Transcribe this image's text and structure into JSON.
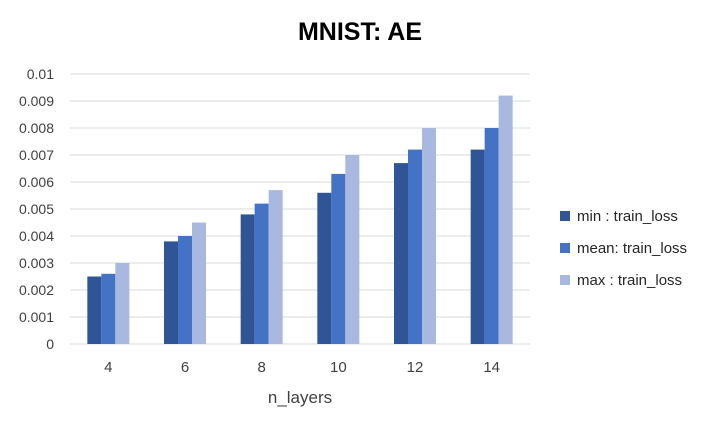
{
  "chart_data": {
    "type": "bar",
    "title": "MNIST: AE",
    "xlabel": "n_layers",
    "ylabel": "",
    "categories": [
      "4",
      "6",
      "8",
      "10",
      "12",
      "14"
    ],
    "series": [
      {
        "name": "min : train_loss",
        "color": "#2F5597",
        "values": [
          0.0025,
          0.0038,
          0.0048,
          0.0056,
          0.0067,
          0.0072
        ]
      },
      {
        "name": "mean: train_loss",
        "color": "#4472C4",
        "values": [
          0.0026,
          0.004,
          0.0052,
          0.0063,
          0.0072,
          0.008
        ]
      },
      {
        "name": "max : train_loss",
        "color": "#A9B8DE",
        "values": [
          0.003,
          0.0045,
          0.0057,
          0.007,
          0.008,
          0.0092
        ]
      }
    ],
    "ylim": [
      0,
      0.01
    ],
    "yticks": [
      "0",
      "0.001",
      "0.002",
      "0.003",
      "0.004",
      "0.005",
      "0.006",
      "0.007",
      "0.008",
      "0.009",
      "0.01"
    ],
    "grid": true,
    "legend_position": "right"
  }
}
